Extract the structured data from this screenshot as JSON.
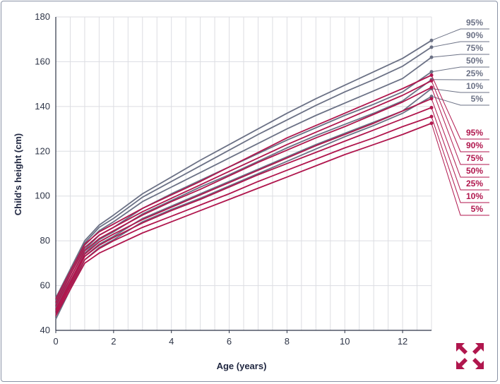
{
  "chart_data": {
    "type": "line",
    "xlabel": "Age (years)",
    "ylabel": "Child's height (cm)",
    "xlim": [
      0,
      13
    ],
    "ylim": [
      40,
      180
    ],
    "xticks": [
      0,
      2,
      4,
      6,
      8,
      10,
      12
    ],
    "yticks": [
      40,
      60,
      80,
      100,
      120,
      140,
      160,
      180
    ],
    "grid": true,
    "legend_placement": "right",
    "x": [
      0,
      1,
      1.5,
      2,
      3,
      4,
      5,
      6,
      7,
      8,
      9,
      10,
      11,
      12,
      13
    ],
    "groups": [
      {
        "color": "#6b7185",
        "series": [
          {
            "name": "95%",
            "values": [
              54.5,
              80,
              87,
              91.5,
              101,
              108.5,
              116,
              123,
              130,
              137,
              143.5,
              149.5,
              155.5,
              161.5,
              169.5
            ]
          },
          {
            "name": "90%",
            "values": [
              53,
              79,
              86,
              90,
              99.5,
              106.5,
              113.5,
              120.5,
              127.5,
              134,
              140.5,
              146.5,
              152,
              158,
              166.5
            ]
          },
          {
            "name": "75%",
            "values": [
              51.5,
              78,
              84.5,
              88.5,
              97.5,
              104,
              110.5,
              117,
              123.5,
              130,
              136,
              141.5,
              147,
              152.5,
              162
            ]
          },
          {
            "name": "50%",
            "values": [
              50,
              76,
              82.5,
              86,
              94.5,
              101,
              107,
              113,
              119,
              125,
              130.5,
              136,
              141,
              146.5,
              155.5
            ]
          },
          {
            "name": "25%",
            "values": [
              48.5,
              74.5,
              80.5,
              84,
              92,
              98,
              104,
              109.5,
              115.5,
              121.5,
              127,
              132,
              137,
              142.5,
              152
            ]
          },
          {
            "name": "10%",
            "values": [
              47,
              73,
              78.5,
              82,
              90,
              95.5,
              101,
              106.5,
              112,
              117.5,
              123,
              128,
              133,
              138,
              148
            ]
          },
          {
            "name": "5%",
            "values": [
              45,
              71.5,
              77,
              80.5,
              88.5,
              94,
              99,
              104.5,
              110,
              115.5,
              121,
              126.5,
              131.5,
              137,
              144.5
            ]
          }
        ]
      },
      {
        "color": "#b0164d",
        "series": [
          {
            "name": "95%",
            "values": [
              54,
              78.5,
              84,
              87.5,
              94.5,
              100.5,
              106.5,
              113,
              119.5,
              126,
              131.5,
              137,
              142.5,
              148,
              154
            ]
          },
          {
            "name": "90%",
            "values": [
              52.5,
              77,
              82.5,
              86,
              93,
              99,
              105,
              111,
              117,
              123,
              128.5,
              134,
              139.5,
              145,
              151.5
            ]
          },
          {
            "name": "75%",
            "values": [
              51,
              75.5,
              81,
              84.5,
              91.5,
              97.5,
              103,
              109,
              115,
              120.5,
              126,
              131,
              136.5,
              142,
              148.5
            ]
          },
          {
            "name": "50%",
            "values": [
              49.5,
              74,
              79.5,
              83,
              89.5,
              95,
              100.5,
              106,
              111.5,
              117,
              122.5,
              127.5,
              132.5,
              138,
              143.5
            ]
          },
          {
            "name": "25%",
            "values": [
              48.5,
              73,
              78,
              81.5,
              88,
              93.5,
              98.5,
              104,
              109.5,
              114.5,
              119.5,
              124.5,
              129.5,
              134.5,
              139.5
            ]
          },
          {
            "name": "10%",
            "values": [
              47.5,
              71.5,
              76.5,
              80,
              86,
              91,
              96,
              101,
              106.5,
              111.5,
              116.5,
              121.5,
              126,
              131,
              135.5
            ]
          },
          {
            "name": "5%",
            "values": [
              46.5,
              70,
              74.5,
              77.5,
              83.5,
              88.5,
              93.5,
              98.5,
              103.5,
              108.5,
              113.5,
              118.5,
              123,
              127.5,
              132.5
            ]
          }
        ]
      }
    ]
  }
}
